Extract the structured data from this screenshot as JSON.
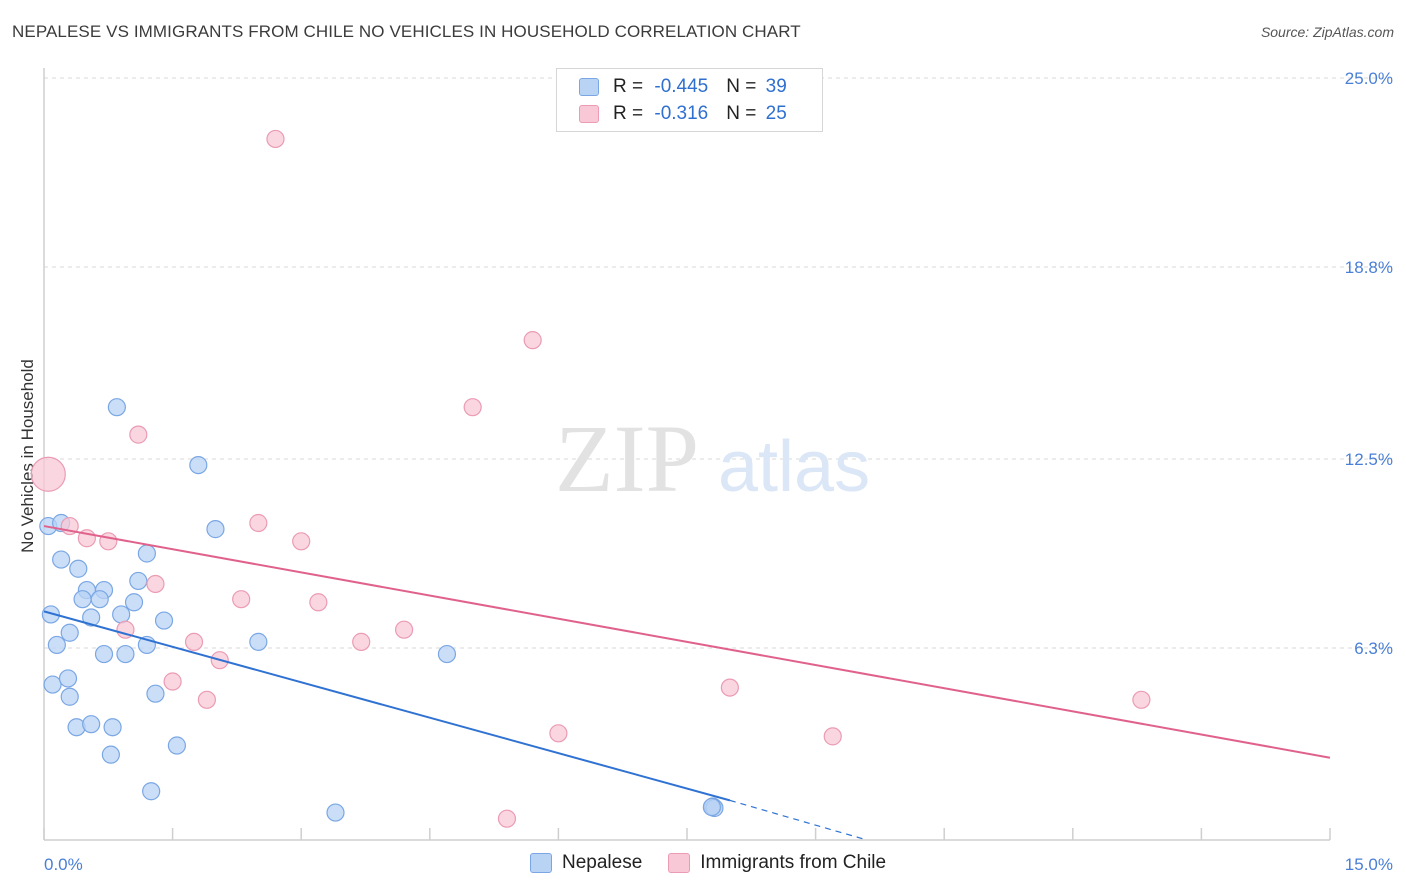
{
  "title": "NEPALESE VS IMMIGRANTS FROM CHILE NO VEHICLES IN HOUSEHOLD CORRELATION CHART",
  "source": "Source: ZipAtlas.com",
  "watermark": {
    "zip": "ZIP",
    "atlas": "atlas"
  },
  "legend_top": {
    "rows": [
      {
        "r_label": "R = ",
        "r_value": "-0.445",
        "n_label": "N = ",
        "n_value": "39"
      },
      {
        "r_label": "R = ",
        "r_value": "-0.316",
        "n_label": "N = ",
        "n_value": "25"
      }
    ]
  },
  "legend_bottom": {
    "series1": "Nepalese",
    "series2": "Immigrants from Chile"
  },
  "colors": {
    "blue_fill": "#b9d3f5",
    "blue_stroke": "#7aa7e4",
    "blue_line": "#2f72d2",
    "pink_fill": "#f8c8d6",
    "pink_stroke": "#eb9bb4",
    "pink_line": "#e0628c",
    "grid": "#d9d9d9",
    "tick_text": "#4a7fd6"
  },
  "chart_data": {
    "type": "scatter",
    "title": "NEPALESE VS IMMIGRANTS FROM CHILE NO VEHICLES IN HOUSEHOLD CORRELATION CHART",
    "xlabel": "",
    "ylabel": "No Vehicles in Household",
    "xlim": [
      0,
      15
    ],
    "ylim": [
      0,
      25
    ],
    "x_tick_labels": [
      "0.0%",
      "15.0%"
    ],
    "y_ticks": [
      6.3,
      12.5,
      18.8,
      25.0
    ],
    "y_tick_labels": [
      "6.3%",
      "12.5%",
      "18.8%",
      "25.0%"
    ],
    "grid": true,
    "legend_position": "top-center",
    "series": [
      {
        "name": "Nepalese",
        "r": -0.445,
        "n": 39,
        "points": [
          [
            0.05,
            10.3
          ],
          [
            0.2,
            10.4
          ],
          [
            0.85,
            14.2
          ],
          [
            1.8,
            12.3
          ],
          [
            2.0,
            10.2
          ],
          [
            0.2,
            9.2
          ],
          [
            1.2,
            9.4
          ],
          [
            0.4,
            8.9
          ],
          [
            0.5,
            8.2
          ],
          [
            0.7,
            8.2
          ],
          [
            1.1,
            8.5
          ],
          [
            0.45,
            7.9
          ],
          [
            0.65,
            7.9
          ],
          [
            1.05,
            7.8
          ],
          [
            0.08,
            7.4
          ],
          [
            0.55,
            7.3
          ],
          [
            0.9,
            7.4
          ],
          [
            1.4,
            7.2
          ],
          [
            0.3,
            6.8
          ],
          [
            0.15,
            6.4
          ],
          [
            0.7,
            6.1
          ],
          [
            0.95,
            6.1
          ],
          [
            1.2,
            6.4
          ],
          [
            2.5,
            6.5
          ],
          [
            4.7,
            6.1
          ],
          [
            0.1,
            5.1
          ],
          [
            0.28,
            5.3
          ],
          [
            0.3,
            4.7
          ],
          [
            1.3,
            4.8
          ],
          [
            0.38,
            3.7
          ],
          [
            0.55,
            3.8
          ],
          [
            0.8,
            3.7
          ],
          [
            1.55,
            3.1
          ],
          [
            0.78,
            2.8
          ],
          [
            1.25,
            1.6
          ],
          [
            3.4,
            0.9
          ],
          [
            7.8,
            1.1
          ],
          [
            7.82,
            1.05
          ],
          [
            7.79,
            1.08
          ]
        ],
        "trend": {
          "x1": 0.0,
          "y1": 7.5,
          "x2": 8.0,
          "y2": 1.3,
          "dashed_to_x": 9.6,
          "dashed_to_y": 0.0
        }
      },
      {
        "name": "Immigrants from Chile",
        "r": -0.316,
        "n": 25,
        "points": [
          [
            0.05,
            12.0
          ],
          [
            2.7,
            23.0
          ],
          [
            5.7,
            16.4
          ],
          [
            5.0,
            14.2
          ],
          [
            1.1,
            13.3
          ],
          [
            0.3,
            10.3
          ],
          [
            0.5,
            9.9
          ],
          [
            0.75,
            9.8
          ],
          [
            2.5,
            10.4
          ],
          [
            3.0,
            9.8
          ],
          [
            1.3,
            8.4
          ],
          [
            2.3,
            7.9
          ],
          [
            3.2,
            7.8
          ],
          [
            0.95,
            6.9
          ],
          [
            1.75,
            6.5
          ],
          [
            3.7,
            6.5
          ],
          [
            4.2,
            6.9
          ],
          [
            2.05,
            5.9
          ],
          [
            1.5,
            5.2
          ],
          [
            1.9,
            4.6
          ],
          [
            8.0,
            5.0
          ],
          [
            12.8,
            4.6
          ],
          [
            6.0,
            3.5
          ],
          [
            9.2,
            3.4
          ],
          [
            5.4,
            0.7
          ]
        ],
        "trend": {
          "x1": 0.0,
          "y1": 10.3,
          "x2": 15.0,
          "y2": 2.7
        }
      }
    ]
  }
}
